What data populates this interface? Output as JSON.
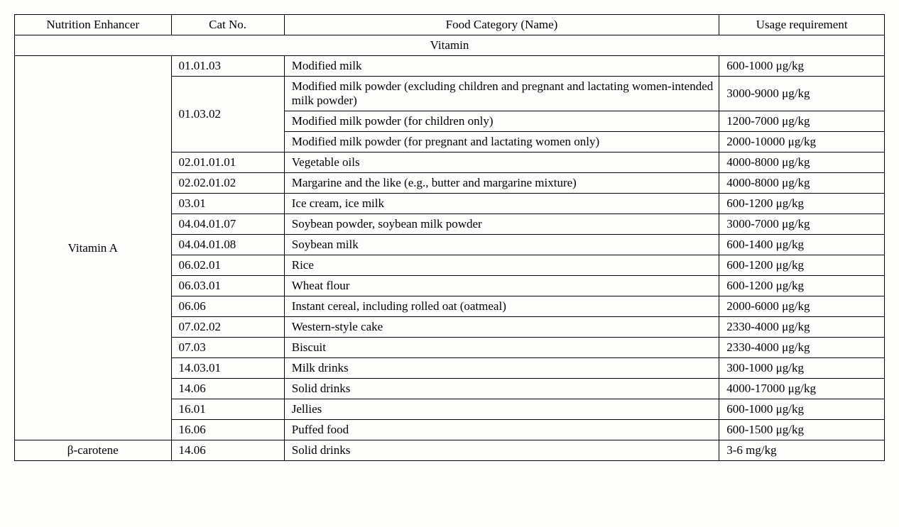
{
  "headers": {
    "enhancer": "Nutrition Enhancer",
    "catno": "Cat No.",
    "foodcat": "Food Category (Name)",
    "usage": "Usage requirement"
  },
  "section": "Vitamin",
  "vitA": {
    "name": "Vitamin A",
    "rows": [
      {
        "cat": "01.01.03",
        "food": "Modified milk",
        "use": "600-1000 μg/kg"
      },
      {
        "cat": "01.03.02",
        "food": "Modified milk powder (excluding children and pregnant and lactating women-intended milk powder)",
        "use": "3000-9000 μg/kg"
      },
      {
        "cat": "",
        "food": "Modified milk powder (for children only)",
        "use": "1200-7000 μg/kg"
      },
      {
        "cat": "",
        "food": "Modified milk powder (for pregnant and lactating women only)",
        "use": "2000-10000 μg/kg"
      },
      {
        "cat": "02.01.01.01",
        "food": "Vegetable oils",
        "use": "4000-8000 μg/kg"
      },
      {
        "cat": "02.02.01.02",
        "food": "Margarine and the like (e.g., butter and margarine mixture)",
        "use": "4000-8000 μg/kg"
      },
      {
        "cat": "03.01",
        "food": "Ice cream, ice milk",
        "use": "600-1200 μg/kg"
      },
      {
        "cat": "04.04.01.07",
        "food": "Soybean powder, soybean milk powder",
        "use": "3000-7000 μg/kg"
      },
      {
        "cat": "04.04.01.08",
        "food": "Soybean milk",
        "use": "600-1400 μg/kg"
      },
      {
        "cat": "06.02.01",
        "food": "Rice",
        "use": "600-1200 μg/kg"
      },
      {
        "cat": "06.03.01",
        "food": "Wheat flour",
        "use": "600-1200 μg/kg"
      },
      {
        "cat": "06.06",
        "food": "Instant cereal, including rolled oat (oatmeal)",
        "use": "2000-6000 μg/kg"
      },
      {
        "cat": "07.02.02",
        "food": "Western-style cake",
        "use": "2330-4000 μg/kg"
      },
      {
        "cat": "07.03",
        "food": "Biscuit",
        "use": "2330-4000 μg/kg"
      },
      {
        "cat": "14.03.01",
        "food": "Milk drinks",
        "use": "300-1000 μg/kg"
      },
      {
        "cat": "14.06",
        "food": "Solid drinks",
        "use": "4000-17000 μg/kg"
      },
      {
        "cat": "16.01",
        "food": "Jellies",
        "use": "600-1000 μg/kg"
      },
      {
        "cat": "16.06",
        "food": "Puffed food",
        "use": "600-1500 μg/kg"
      }
    ]
  },
  "bcar": {
    "name": "β-carotene",
    "cat": "14.06",
    "food": "Solid drinks",
    "use": "3-6 mg/kg"
  },
  "style": {
    "font_family": "Times New Roman",
    "font_size_pt": 13,
    "border_color": "#000000",
    "background_color": "#fdfdfb",
    "text_color": "#000000",
    "col_widths_pct": [
      18,
      13,
      50,
      19
    ]
  }
}
